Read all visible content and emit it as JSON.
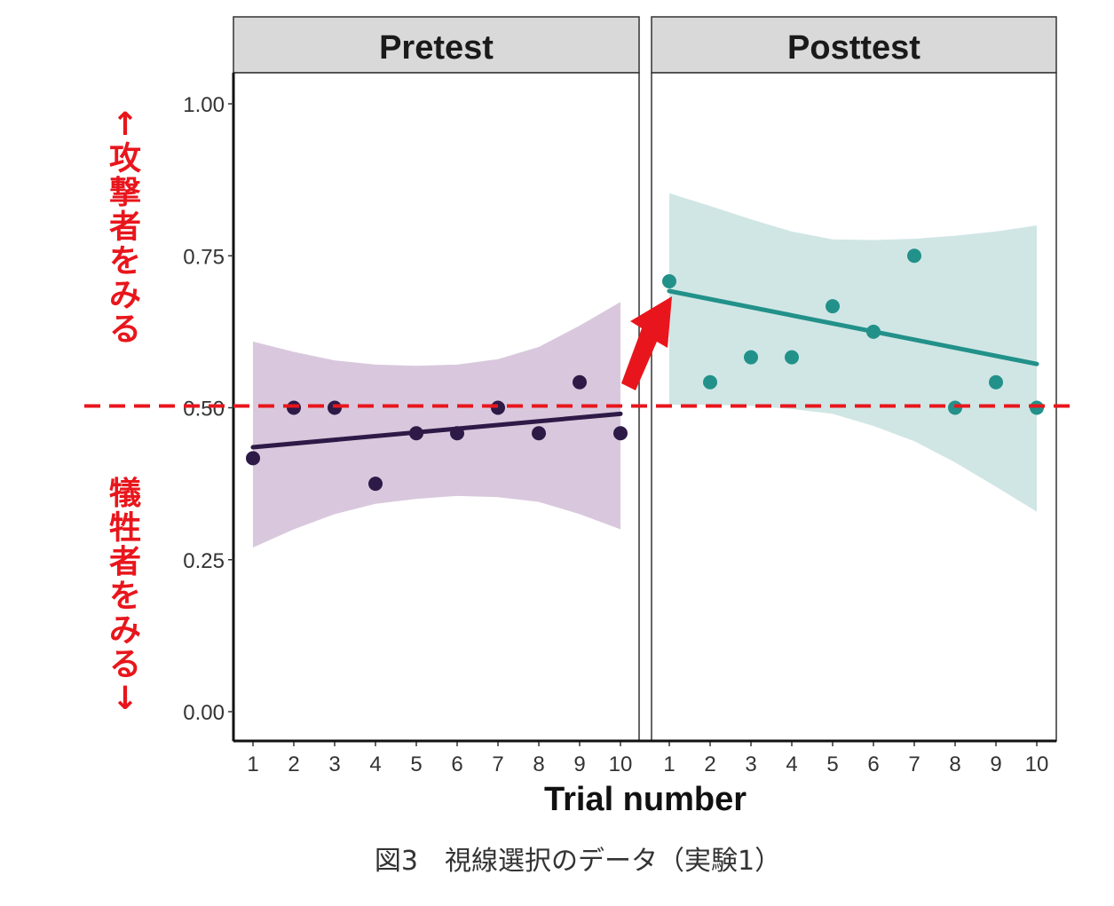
{
  "chart_data": {
    "type": "scatter",
    "xlabel": "Trial number",
    "ylabel": "",
    "ylim": [
      0,
      1
    ],
    "yticks": [
      "0.00",
      "0.25",
      "0.50",
      "0.75",
      "1.00"
    ],
    "xticks": [
      "1",
      "2",
      "3",
      "4",
      "5",
      "6",
      "7",
      "8",
      "9",
      "10"
    ],
    "grid": false,
    "reference_line": {
      "y": 0.5,
      "style": "dashed",
      "color": "#e8161c"
    },
    "panels": [
      {
        "name": "Pretest",
        "color": "#2e1a47",
        "ribbon_color": "#d9c8dd",
        "x": [
          1,
          2,
          3,
          4,
          5,
          6,
          7,
          8,
          9,
          10
        ],
        "y": [
          0.417,
          0.5,
          0.5,
          0.375,
          0.458,
          0.458,
          0.5,
          0.458,
          0.542,
          0.458
        ],
        "fit": {
          "start": 0.435,
          "end": 0.49
        },
        "ci_upper": [
          0.609,
          0.592,
          0.578,
          0.571,
          0.569,
          0.571,
          0.58,
          0.6,
          0.635,
          0.674
        ],
        "ci_lower": [
          0.27,
          0.3,
          0.325,
          0.342,
          0.35,
          0.355,
          0.353,
          0.345,
          0.325,
          0.3
        ]
      },
      {
        "name": "Posttest",
        "color": "#22918a",
        "ribbon_color": "#d0e6e5",
        "x": [
          1,
          2,
          3,
          4,
          5,
          6,
          7,
          8,
          9,
          10
        ],
        "y": [
          0.708,
          0.542,
          0.583,
          0.583,
          0.667,
          0.625,
          0.75,
          0.5,
          0.542,
          0.5
        ],
        "fit": {
          "start": 0.692,
          "end": 0.572
        },
        "ci_upper": [
          0.853,
          0.832,
          0.81,
          0.79,
          0.777,
          0.776,
          0.778,
          0.783,
          0.79,
          0.8
        ],
        "ci_lower": [
          0.505,
          0.505,
          0.503,
          0.498,
          0.49,
          0.47,
          0.445,
          0.41,
          0.37,
          0.329
        ]
      }
    ],
    "annotations": {
      "upper": "↑攻撃者をみる",
      "lower": "犠牲者をみる↓",
      "color": "#e8161c"
    },
    "caption": "図3　視線選択のデータ（実験1）"
  }
}
